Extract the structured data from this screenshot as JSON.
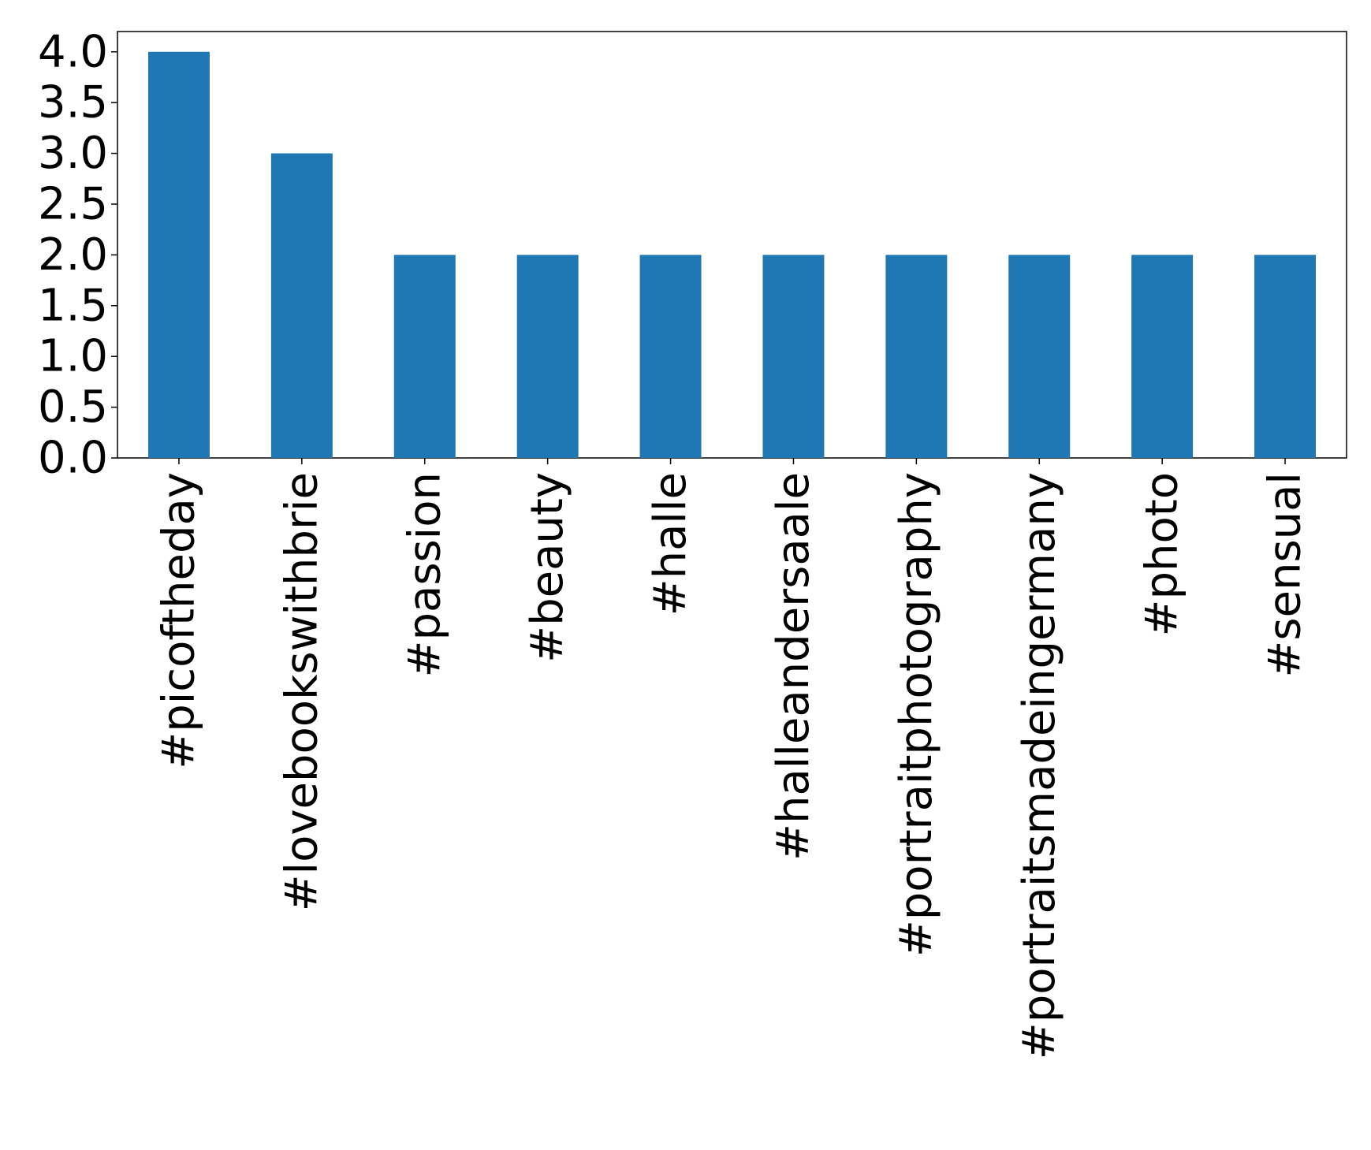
{
  "chart_data": {
    "type": "bar",
    "categories": [
      "#picoftheday",
      "#lovebookswithbrie",
      "#passion",
      "#beauty",
      "#halle",
      "#halleandersaale",
      "#portraitphotography",
      "#portraitsmadeingermany",
      "#photo",
      "#sensual"
    ],
    "values": [
      4,
      3,
      2,
      2,
      2,
      2,
      2,
      2,
      2,
      2
    ],
    "color": "#1f77b4",
    "ylim": [
      0,
      4.2
    ],
    "yticks": [
      {
        "value": 0,
        "label": "0.0"
      },
      {
        "value": 0.5,
        "label": "0.5"
      },
      {
        "value": 1,
        "label": "1.0"
      },
      {
        "value": 1.5,
        "label": "1.5"
      },
      {
        "value": 2,
        "label": "2.0"
      },
      {
        "value": 2.5,
        "label": "2.5"
      },
      {
        "value": 3,
        "label": "3.0"
      },
      {
        "value": 3.5,
        "label": "3.5"
      },
      {
        "value": 4,
        "label": "4.0"
      }
    ],
    "grid": false
  }
}
